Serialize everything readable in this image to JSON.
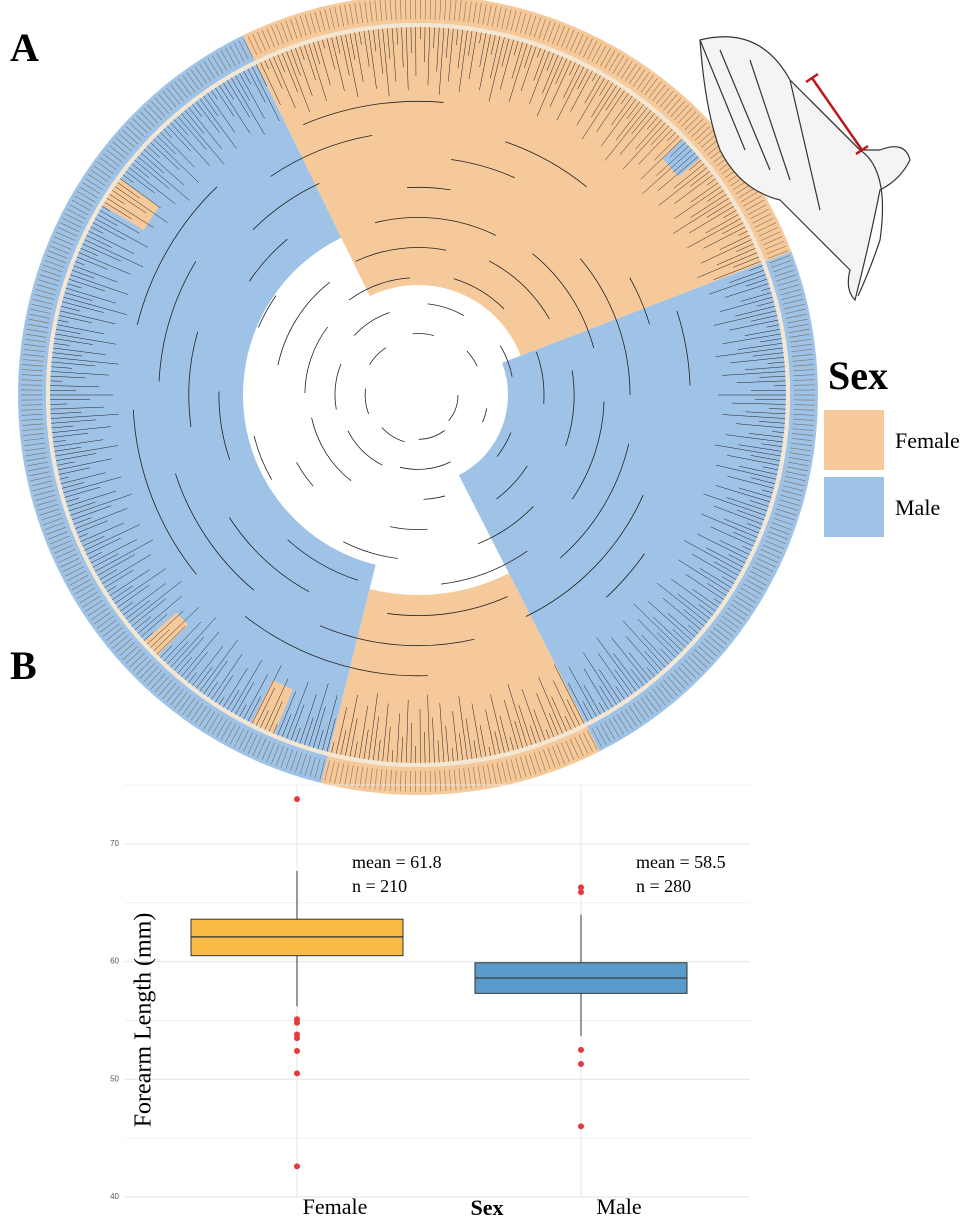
{
  "panels": {
    "a": "A",
    "b": "B"
  },
  "legend": {
    "title": "Sex",
    "items": [
      {
        "label": "Female",
        "color": "#f6c99a"
      },
      {
        "label": "Male",
        "color": "#9fc3e6"
      }
    ]
  },
  "chart_data": {
    "type": "box",
    "x_label": "Sex",
    "y_label": "Forearm Length (mm)",
    "categories": [
      "Female",
      "Male"
    ],
    "boxes": [
      {
        "whisker_low": 56.2,
        "q1": 60.5,
        "median": 62.1,
        "q3": 63.6,
        "whisker_high": 67.7,
        "outliers": [
          73.8,
          55.1,
          54.8,
          53.8,
          53.5,
          52.4,
          50.5,
          42.6
        ],
        "color": "#f9bb43",
        "annotation": [
          "mean = 61.8",
          "n = 210"
        ]
      },
      {
        "whisker_low": 53.7,
        "q1": 57.3,
        "median": 58.6,
        "q3": 59.9,
        "whisker_high": 64.0,
        "outliers": [
          66.3,
          65.9,
          52.5,
          51.3,
          46.0
        ],
        "color": "#5b9bcb",
        "annotation": [
          "mean = 58.5",
          "n = 280"
        ]
      }
    ],
    "outlier_color": "#e8383b",
    "ylim": [
      40,
      75
    ],
    "yticks": [
      40,
      50,
      60,
      70
    ],
    "minor_yticks": [
      45,
      55,
      65,
      75
    ],
    "grid": true
  }
}
